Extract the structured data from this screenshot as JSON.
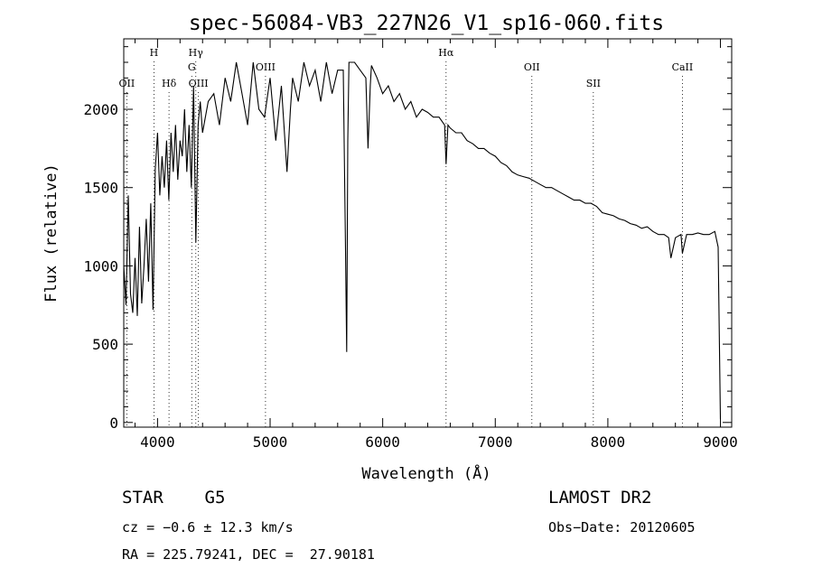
{
  "chart_data": {
    "type": "line",
    "title": "spec-56084-VB3_227N26_V1_sp16-060.fits",
    "xlabel": "Wavelength (Å)",
    "ylabel": "Flux (relative)",
    "xlim": [
      3700,
      9100
    ],
    "ylim": [
      -30,
      2450
    ],
    "x_ticks": [
      4000,
      5000,
      6000,
      7000,
      8000,
      9000
    ],
    "y_ticks": [
      0,
      500,
      1000,
      1500,
      2000
    ],
    "grid": false,
    "legend": "none",
    "line_color": "#000000",
    "line_markers": [
      {
        "label": "OII",
        "x": 3727,
        "level": 3
      },
      {
        "label": "H",
        "x": 3968,
        "level": 1
      },
      {
        "label": "Hδ",
        "x": 4102,
        "level": 3
      },
      {
        "label": "Hγ",
        "x": 4340,
        "level": 1
      },
      {
        "label": "G",
        "x": 4304,
        "level": 2
      },
      {
        "label": "OIII",
        "x": 4363,
        "level": 3
      },
      {
        "label": "OIII",
        "x": 4959,
        "level": 2
      },
      {
        "label": "Hα",
        "x": 6563,
        "level": 1
      },
      {
        "label": "OII",
        "x": 7325,
        "level": 2
      },
      {
        "label": "SII",
        "x": 7871,
        "level": 3
      },
      {
        "label": "CaII",
        "x": 8662,
        "level": 2
      }
    ],
    "series": [
      {
        "x": [
          3700,
          3720,
          3740,
          3760,
          3780,
          3800,
          3820,
          3840,
          3860,
          3880,
          3900,
          3920,
          3940,
          3960,
          3980,
          4000,
          4020,
          4040,
          4060,
          4080,
          4100,
          4120,
          4140,
          4160,
          4180,
          4200,
          4220,
          4240,
          4260,
          4280,
          4300,
          4320,
          4340,
          4360,
          4380,
          4400,
          4450,
          4500,
          4550,
          4600,
          4650,
          4700,
          4750,
          4800,
          4850,
          4900,
          4950,
          5000,
          5050,
          5100,
          5150,
          5180,
          5200,
          5250,
          5300,
          5350,
          5400,
          5450,
          5500,
          5550,
          5600,
          5650,
          5670,
          5680,
          5690,
          5700,
          5750,
          5800,
          5850,
          5870,
          5890,
          5900,
          5950,
          6000,
          6050,
          6100,
          6150,
          6200,
          6250,
          6300,
          6350,
          6400,
          6450,
          6500,
          6550,
          6563,
          6580,
          6600,
          6650,
          6700,
          6750,
          6800,
          6850,
          6900,
          6950,
          7000,
          7050,
          7100,
          7150,
          7200,
          7250,
          7300,
          7350,
          7400,
          7450,
          7500,
          7550,
          7600,
          7650,
          7700,
          7750,
          7800,
          7850,
          7900,
          7950,
          8000,
          8050,
          8100,
          8150,
          8200,
          8250,
          8300,
          8350,
          8400,
          8450,
          8500,
          8540,
          8560,
          8600,
          8650,
          8662,
          8700,
          8750,
          8800,
          8850,
          8900,
          8950,
          8980,
          9000
        ],
        "y": [
          1000,
          750,
          1450,
          820,
          700,
          1050,
          680,
          1250,
          760,
          1000,
          1300,
          900,
          1400,
          720,
          1620,
          1850,
          1450,
          1700,
          1500,
          1800,
          1420,
          1850,
          1600,
          1900,
          1550,
          1800,
          1700,
          2000,
          1600,
          1900,
          1500,
          2150,
          1150,
          1900,
          2050,
          1850,
          2050,
          2100,
          1900,
          2200,
          2050,
          2300,
          2100,
          1900,
          2300,
          2000,
          1950,
          2200,
          1800,
          2150,
          1600,
          2000,
          2200,
          2050,
          2300,
          2150,
          2250,
          2050,
          2300,
          2100,
          2250,
          2250,
          1100,
          450,
          1800,
          2300,
          2300,
          2250,
          2200,
          1750,
          2150,
          2280,
          2200,
          2100,
          2150,
          2050,
          2100,
          2000,
          2050,
          1950,
          2000,
          1980,
          1950,
          1950,
          1900,
          1650,
          1900,
          1880,
          1850,
          1850,
          1800,
          1780,
          1750,
          1750,
          1720,
          1700,
          1660,
          1640,
          1600,
          1580,
          1570,
          1560,
          1540,
          1520,
          1500,
          1500,
          1480,
          1460,
          1440,
          1420,
          1420,
          1400,
          1400,
          1380,
          1340,
          1330,
          1320,
          1300,
          1290,
          1270,
          1260,
          1240,
          1250,
          1220,
          1200,
          1200,
          1180,
          1050,
          1180,
          1200,
          1080,
          1200,
          1200,
          1210,
          1200,
          1200,
          1220,
          1120,
          20
        ]
      }
    ]
  },
  "footer": {
    "object": "STAR    G5",
    "survey": "LAMOST DR2",
    "cz": "cz = −0.6 ± 12.3 km/s",
    "obs_date": "Obs−Date: 20120605",
    "radec": "RA = 225.79241, DEC =  27.90181"
  }
}
